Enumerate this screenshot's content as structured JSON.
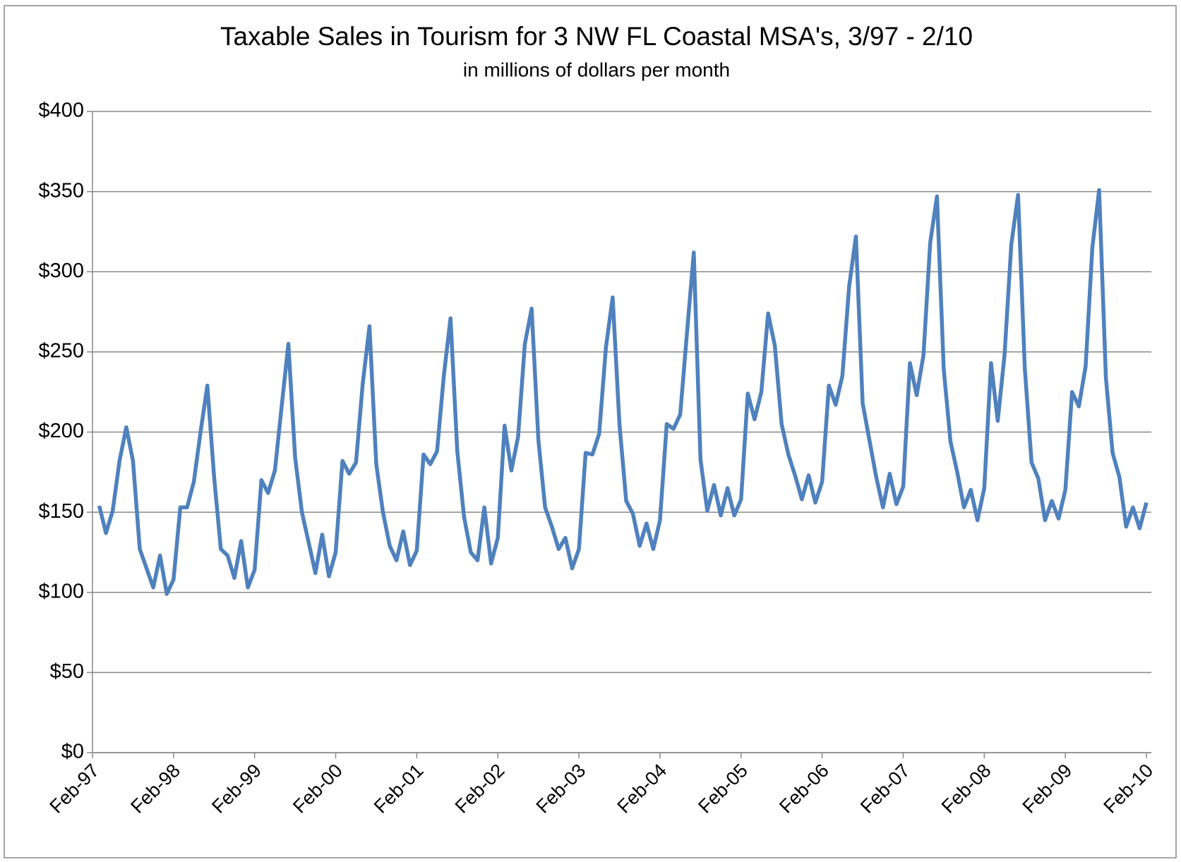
{
  "chart_data": {
    "type": "line",
    "title": "Taxable Sales in Tourism for 3 NW FL Coastal MSA's, 3/97 - 2/10",
    "subtitle": "in millions of dollars per month",
    "categories": [
      "Feb-97",
      null,
      null,
      null,
      null,
      null,
      null,
      null,
      null,
      null,
      null,
      null,
      "Feb-98",
      null,
      null,
      null,
      null,
      null,
      null,
      null,
      null,
      null,
      null,
      null,
      "Feb-99",
      null,
      null,
      null,
      null,
      null,
      null,
      null,
      null,
      null,
      null,
      null,
      "Feb-00",
      null,
      null,
      null,
      null,
      null,
      null,
      null,
      null,
      null,
      null,
      null,
      "Feb-01",
      null,
      null,
      null,
      null,
      null,
      null,
      null,
      null,
      null,
      null,
      null,
      "Feb-02",
      null,
      null,
      null,
      null,
      null,
      null,
      null,
      null,
      null,
      null,
      null,
      "Feb-03",
      null,
      null,
      null,
      null,
      null,
      null,
      null,
      null,
      null,
      null,
      null,
      "Feb-04",
      null,
      null,
      null,
      null,
      null,
      null,
      null,
      null,
      null,
      null,
      null,
      "Feb-05",
      null,
      null,
      null,
      null,
      null,
      null,
      null,
      null,
      null,
      null,
      null,
      "Feb-06",
      null,
      null,
      null,
      null,
      null,
      null,
      null,
      null,
      null,
      null,
      null,
      "Feb-07",
      null,
      null,
      null,
      null,
      null,
      null,
      null,
      null,
      null,
      null,
      null,
      "Feb-08",
      null,
      null,
      null,
      null,
      null,
      null,
      null,
      null,
      null,
      null,
      null,
      "Feb-09",
      null,
      null,
      null,
      null,
      null,
      null,
      null,
      null,
      null,
      null,
      null,
      "Feb-10"
    ],
    "series": [
      {
        "name": "Taxable Sales",
        "color": "#4f81bd",
        "values": [
          null,
          154,
          137,
          151,
          182,
          203,
          182,
          127,
          115,
          103,
          123,
          99,
          108,
          153,
          153,
          169,
          200,
          229,
          172,
          127,
          123,
          109,
          132,
          103,
          114,
          170,
          162,
          176,
          216,
          255,
          184,
          150,
          131,
          112,
          136,
          110,
          125,
          182,
          174,
          181,
          230,
          266,
          180,
          150,
          129,
          120,
          138,
          117,
          126,
          186,
          180,
          188,
          235,
          271,
          188,
          147,
          125,
          120,
          153,
          118,
          134,
          204,
          176,
          197,
          255,
          277,
          195,
          153,
          141,
          127,
          134,
          115,
          127,
          187,
          186,
          199,
          253,
          284,
          205,
          157,
          149,
          129,
          143,
          127,
          145,
          205,
          202,
          211,
          262,
          312,
          183,
          151,
          167,
          148,
          165,
          148,
          158,
          224,
          208,
          225,
          274,
          254,
          205,
          186,
          173,
          158,
          173,
          156,
          169,
          229,
          217,
          235,
          291,
          322,
          218,
          195,
          172,
          153,
          174,
          155,
          166,
          243,
          223,
          248,
          318,
          347,
          239,
          194,
          175,
          153,
          164,
          145,
          165,
          243,
          207,
          248,
          317,
          348,
          240,
          181,
          171,
          145,
          157,
          146,
          164,
          225,
          216,
          241,
          315,
          351,
          234,
          187,
          172,
          141,
          153,
          140,
          156
        ]
      }
    ],
    "ylim": [
      0,
      400
    ],
    "yticks": [
      {
        "value": 0,
        "label": "$0"
      },
      {
        "value": 50,
        "label": "$50"
      },
      {
        "value": 100,
        "label": "$100"
      },
      {
        "value": 150,
        "label": "$150"
      },
      {
        "value": 200,
        "label": "$200"
      },
      {
        "value": 250,
        "label": "$250"
      },
      {
        "value": 300,
        "label": "$300"
      },
      {
        "value": 350,
        "label": "$350"
      },
      {
        "value": 400,
        "label": "$400"
      }
    ],
    "grid": true
  }
}
